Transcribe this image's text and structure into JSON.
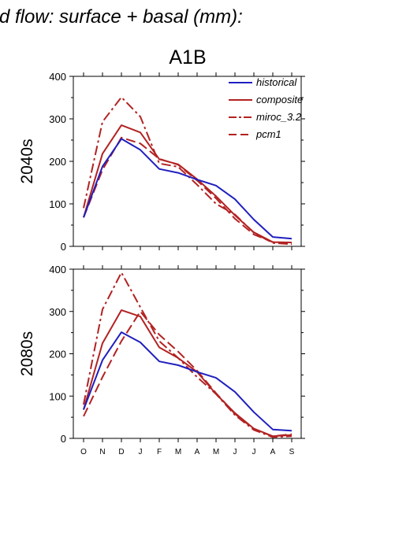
{
  "figure": {
    "title": "d flow: surface + basal (mm):",
    "scenario": "A1B"
  },
  "colors": {
    "historical": "#1f1fbf",
    "model": "#b22222"
  },
  "chart_data": [
    {
      "type": "line",
      "panel_label": "2040s",
      "categories": [
        "O",
        "N",
        "D",
        "J",
        "F",
        "M",
        "A",
        "M",
        "J",
        "J",
        "A",
        "S"
      ],
      "ylim": [
        0,
        400
      ],
      "yticks": [
        0,
        100,
        200,
        300,
        400
      ],
      "legend": "top-right",
      "series": [
        {
          "name": "historical",
          "style": "solid",
          "color": "#1f1fbf",
          "values": [
            68,
            188,
            253,
            227,
            182,
            173,
            157,
            143,
            111,
            63,
            22,
            18
          ]
        },
        {
          "name": "composite",
          "style": "solid",
          "color": "#b22222",
          "values": [
            68,
            218,
            285,
            268,
            205,
            193,
            158,
            118,
            73,
            33,
            10,
            9
          ]
        },
        {
          "name": "miroc_3.2",
          "style": "dashdot",
          "color": "#b22222",
          "values": [
            90,
            293,
            351,
            305,
            195,
            187,
            145,
            100,
            75,
            32,
            8,
            5
          ]
        },
        {
          "name": "pcm1",
          "style": "dash",
          "color": "#b22222",
          "values": [
            68,
            180,
            256,
            242,
            206,
            192,
            155,
            113,
            65,
            28,
            10,
            8
          ]
        }
      ]
    },
    {
      "type": "line",
      "panel_label": "2080s",
      "categories": [
        "O",
        "N",
        "D",
        "J",
        "F",
        "M",
        "A",
        "M",
        "J",
        "J",
        "A",
        "S"
      ],
      "ylim": [
        0,
        400
      ],
      "yticks": [
        0,
        100,
        200,
        300,
        400
      ],
      "legend": "none",
      "series": [
        {
          "name": "historical",
          "style": "solid",
          "color": "#1f1fbf",
          "values": [
            68,
            185,
            251,
            227,
            182,
            173,
            157,
            143,
            110,
            62,
            21,
            18
          ]
        },
        {
          "name": "composite",
          "style": "solid",
          "color": "#b22222",
          "values": [
            68,
            225,
            303,
            288,
            215,
            190,
            157,
            105,
            60,
            23,
            5,
            8
          ]
        },
        {
          "name": "miroc_3.2",
          "style": "dashdot",
          "color": "#b22222",
          "values": [
            80,
            305,
            392,
            310,
            230,
            190,
            145,
            105,
            55,
            20,
            3,
            5
          ]
        },
        {
          "name": "pcm1",
          "style": "dash",
          "color": "#b22222",
          "values": [
            52,
            145,
            230,
            300,
            245,
            205,
            160,
            107,
            58,
            22,
            5,
            10
          ]
        }
      ]
    }
  ]
}
